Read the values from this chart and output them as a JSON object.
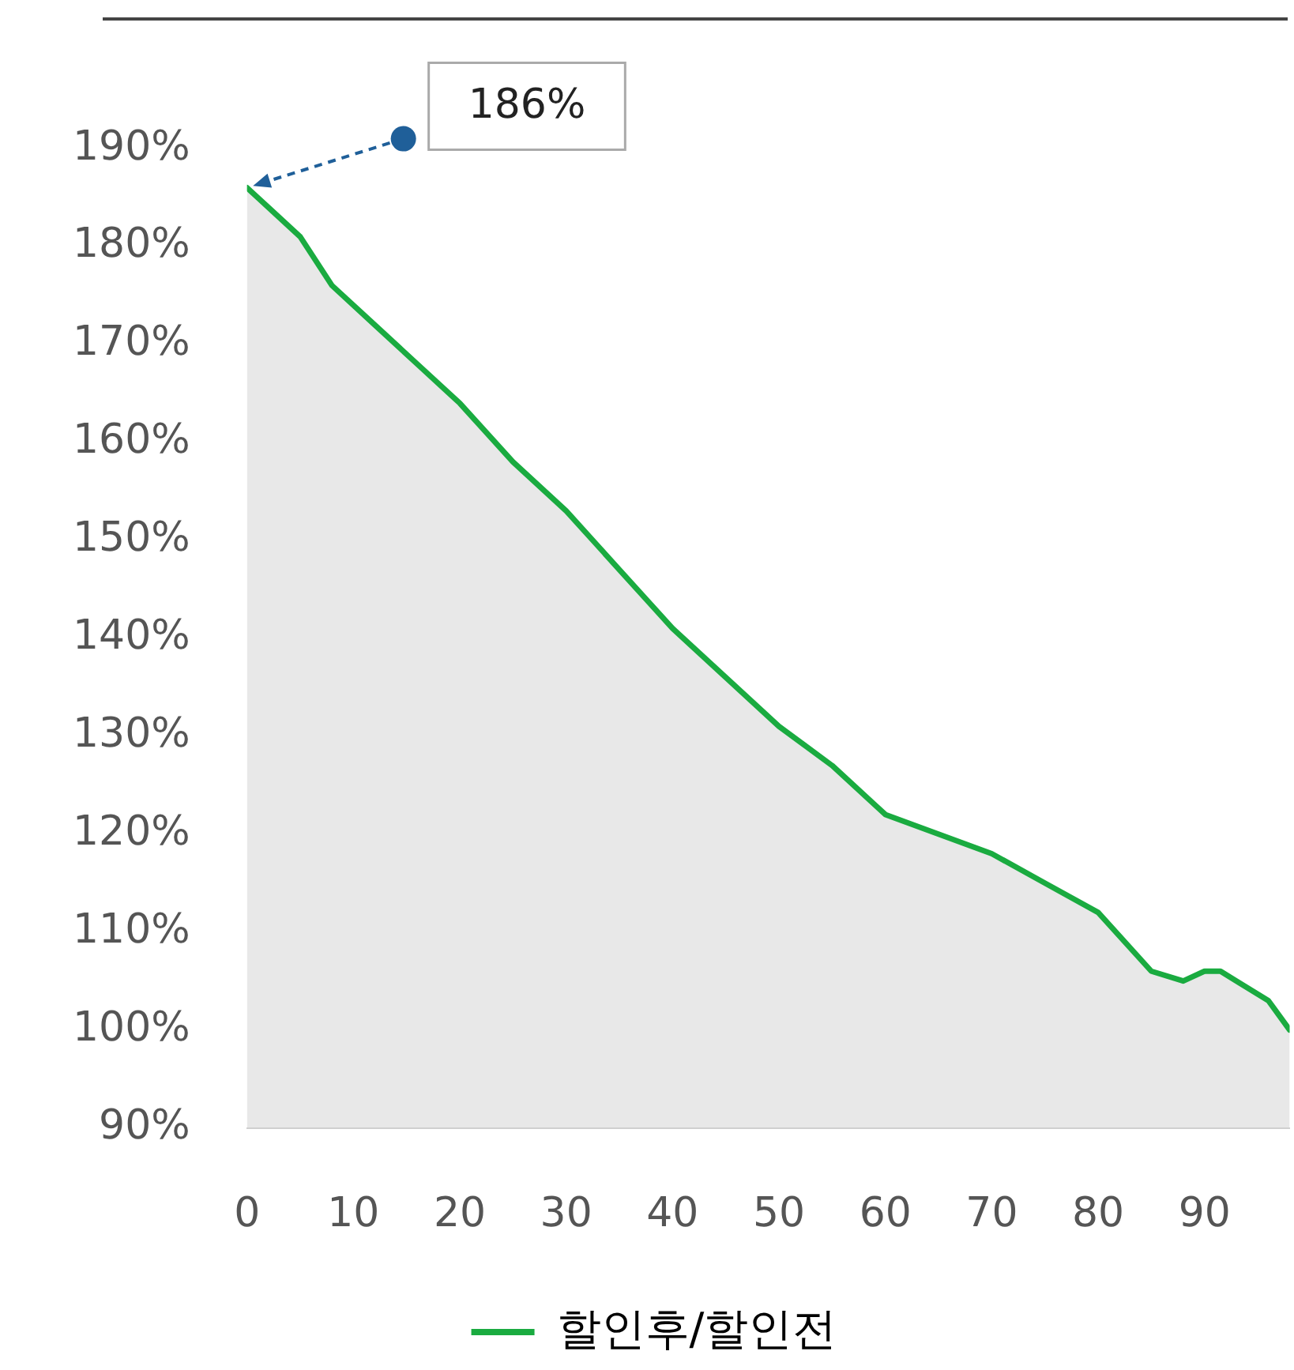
{
  "chart_data": {
    "type": "area",
    "x": [
      0,
      2,
      5,
      8,
      12,
      16,
      20,
      25,
      30,
      35,
      40,
      45,
      50,
      55,
      60,
      65,
      70,
      75,
      80,
      85,
      88,
      90,
      91.5,
      93,
      96,
      98
    ],
    "series": [
      {
        "name": "할인후/할인전",
        "color": "#1aab40",
        "values": [
          186,
          184,
          181,
          176,
          172,
          168,
          164,
          158,
          153,
          147,
          141,
          136,
          131,
          127,
          122,
          120,
          118,
          115,
          112,
          106,
          105,
          106,
          106,
          105,
          103,
          100
        ]
      }
    ],
    "xlim": [
      0,
      98
    ],
    "xticks": [
      0,
      10,
      20,
      30,
      40,
      50,
      60,
      70,
      80,
      90
    ],
    "ylim": [
      90,
      190
    ],
    "yticks": [
      {
        "value": 90,
        "label": "90%"
      },
      {
        "value": 100,
        "label": "100%"
      },
      {
        "value": 110,
        "label": "110%"
      },
      {
        "value": 120,
        "label": "120%"
      },
      {
        "value": 130,
        "label": "130%"
      },
      {
        "value": 140,
        "label": "140%"
      },
      {
        "value": 150,
        "label": "150%"
      },
      {
        "value": 160,
        "label": "160%"
      },
      {
        "value": 170,
        "label": "170%"
      },
      {
        "value": 180,
        "label": "180%"
      },
      {
        "value": 190,
        "label": "190%"
      }
    ],
    "annotations": [
      "186%"
    ],
    "grid": false,
    "legend": "bottom",
    "marker": "none",
    "line_style": "solid"
  }
}
